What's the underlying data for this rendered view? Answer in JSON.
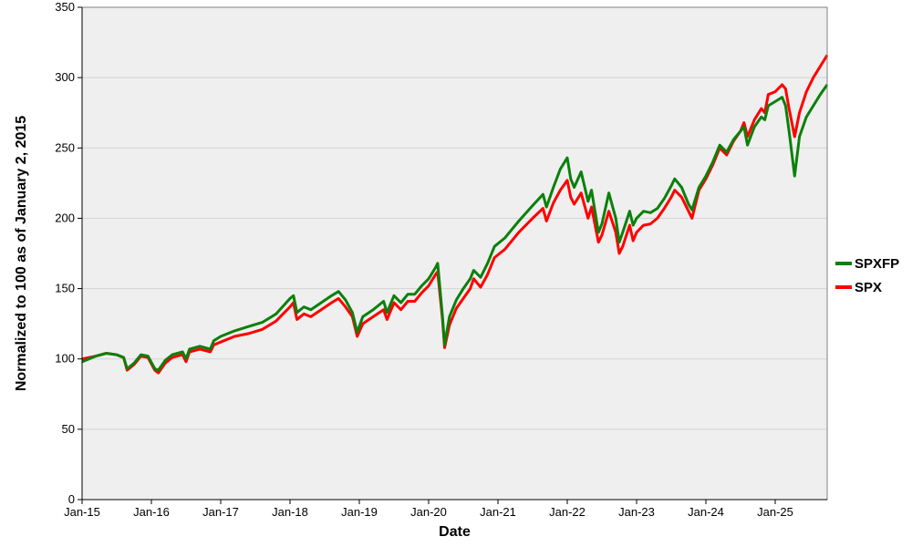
{
  "chart_data": {
    "type": "line",
    "title": "",
    "xlabel": "Date",
    "ylabel": "Normalized to 100 as of January 2, 2015",
    "xlim": [
      2015.0,
      2025.75
    ],
    "ylim": [
      0,
      350
    ],
    "y_ticks": [
      0,
      50,
      100,
      150,
      200,
      250,
      300,
      350
    ],
    "x_ticks": [
      {
        "x": 2015.0,
        "label": "Jan-15"
      },
      {
        "x": 2016.0,
        "label": "Jan-16"
      },
      {
        "x": 2017.0,
        "label": "Jan-17"
      },
      {
        "x": 2018.0,
        "label": "Jan-18"
      },
      {
        "x": 2019.0,
        "label": "Jan-19"
      },
      {
        "x": 2020.0,
        "label": "Jan-20"
      },
      {
        "x": 2021.0,
        "label": "Jan-21"
      },
      {
        "x": 2022.0,
        "label": "Jan-22"
      },
      {
        "x": 2023.0,
        "label": "Jan-23"
      },
      {
        "x": 2024.0,
        "label": "Jan-24"
      },
      {
        "x": 2025.0,
        "label": "Jan-25"
      }
    ],
    "grid": true,
    "background": "#efefef",
    "legend_position": "right",
    "series": [
      {
        "name": "SPX",
        "color": "#ff0000",
        "points": [
          [
            2015.0,
            100
          ],
          [
            2015.1,
            101
          ],
          [
            2015.2,
            102
          ],
          [
            2015.35,
            104
          ],
          [
            2015.5,
            103
          ],
          [
            2015.6,
            101
          ],
          [
            2015.65,
            92
          ],
          [
            2015.75,
            96
          ],
          [
            2015.85,
            102
          ],
          [
            2015.95,
            101
          ],
          [
            2016.05,
            92
          ],
          [
            2016.1,
            90
          ],
          [
            2016.2,
            97
          ],
          [
            2016.3,
            101
          ],
          [
            2016.45,
            103
          ],
          [
            2016.5,
            98
          ],
          [
            2016.55,
            105
          ],
          [
            2016.7,
            107
          ],
          [
            2016.85,
            105
          ],
          [
            2016.9,
            110
          ],
          [
            2017.0,
            112
          ],
          [
            2017.2,
            116
          ],
          [
            2017.4,
            118
          ],
          [
            2017.6,
            121
          ],
          [
            2017.8,
            127
          ],
          [
            2018.0,
            137
          ],
          [
            2018.05,
            140
          ],
          [
            2018.1,
            128
          ],
          [
            2018.2,
            132
          ],
          [
            2018.3,
            130
          ],
          [
            2018.45,
            135
          ],
          [
            2018.6,
            140
          ],
          [
            2018.7,
            143
          ],
          [
            2018.8,
            137
          ],
          [
            2018.9,
            130
          ],
          [
            2018.97,
            116
          ],
          [
            2019.05,
            125
          ],
          [
            2019.2,
            130
          ],
          [
            2019.35,
            135
          ],
          [
            2019.4,
            128
          ],
          [
            2019.5,
            140
          ],
          [
            2019.6,
            135
          ],
          [
            2019.7,
            141
          ],
          [
            2019.8,
            141
          ],
          [
            2019.9,
            147
          ],
          [
            2020.0,
            152
          ],
          [
            2020.1,
            160
          ],
          [
            2020.13,
            162
          ],
          [
            2020.2,
            128
          ],
          [
            2020.23,
            108
          ],
          [
            2020.3,
            124
          ],
          [
            2020.4,
            136
          ],
          [
            2020.5,
            143
          ],
          [
            2020.6,
            150
          ],
          [
            2020.65,
            157
          ],
          [
            2020.75,
            151
          ],
          [
            2020.85,
            160
          ],
          [
            2020.95,
            172
          ],
          [
            2021.0,
            174
          ],
          [
            2021.1,
            178
          ],
          [
            2021.3,
            190
          ],
          [
            2021.5,
            200
          ],
          [
            2021.65,
            207
          ],
          [
            2021.7,
            198
          ],
          [
            2021.8,
            211
          ],
          [
            2021.9,
            220
          ],
          [
            2022.0,
            227
          ],
          [
            2022.05,
            215
          ],
          [
            2022.1,
            210
          ],
          [
            2022.2,
            218
          ],
          [
            2022.3,
            200
          ],
          [
            2022.35,
            208
          ],
          [
            2022.45,
            183
          ],
          [
            2022.5,
            188
          ],
          [
            2022.6,
            205
          ],
          [
            2022.7,
            190
          ],
          [
            2022.75,
            175
          ],
          [
            2022.8,
            180
          ],
          [
            2022.9,
            195
          ],
          [
            2022.95,
            184
          ],
          [
            2023.0,
            190
          ],
          [
            2023.1,
            195
          ],
          [
            2023.2,
            196
          ],
          [
            2023.3,
            200
          ],
          [
            2023.4,
            207
          ],
          [
            2023.5,
            215
          ],
          [
            2023.55,
            220
          ],
          [
            2023.65,
            215
          ],
          [
            2023.75,
            205
          ],
          [
            2023.8,
            200
          ],
          [
            2023.9,
            220
          ],
          [
            2024.0,
            228
          ],
          [
            2024.1,
            238
          ],
          [
            2024.2,
            250
          ],
          [
            2024.3,
            245
          ],
          [
            2024.4,
            255
          ],
          [
            2024.5,
            262
          ],
          [
            2024.55,
            268
          ],
          [
            2024.6,
            258
          ],
          [
            2024.7,
            270
          ],
          [
            2024.8,
            278
          ],
          [
            2024.85,
            275
          ],
          [
            2024.9,
            288
          ],
          [
            2025.0,
            290
          ],
          [
            2025.1,
            295
          ],
          [
            2025.15,
            292
          ],
          [
            2025.2,
            278
          ],
          [
            2025.28,
            258
          ],
          [
            2025.35,
            275
          ],
          [
            2025.45,
            290
          ],
          [
            2025.55,
            300
          ],
          [
            2025.65,
            308
          ],
          [
            2025.75,
            316
          ]
        ]
      },
      {
        "name": "SPXFP",
        "color": "#0b800b",
        "points": [
          [
            2015.0,
            98
          ],
          [
            2015.1,
            100
          ],
          [
            2015.2,
            102
          ],
          [
            2015.35,
            104
          ],
          [
            2015.5,
            103
          ],
          [
            2015.6,
            101
          ],
          [
            2015.65,
            93
          ],
          [
            2015.75,
            97
          ],
          [
            2015.85,
            103
          ],
          [
            2015.95,
            102
          ],
          [
            2016.05,
            93
          ],
          [
            2016.1,
            92
          ],
          [
            2016.2,
            99
          ],
          [
            2016.3,
            103
          ],
          [
            2016.45,
            105
          ],
          [
            2016.5,
            100
          ],
          [
            2016.55,
            107
          ],
          [
            2016.7,
            109
          ],
          [
            2016.85,
            107
          ],
          [
            2016.9,
            113
          ],
          [
            2017.0,
            116
          ],
          [
            2017.2,
            120
          ],
          [
            2017.4,
            123
          ],
          [
            2017.6,
            126
          ],
          [
            2017.8,
            132
          ],
          [
            2018.0,
            143
          ],
          [
            2018.05,
            145
          ],
          [
            2018.1,
            133
          ],
          [
            2018.2,
            137
          ],
          [
            2018.3,
            135
          ],
          [
            2018.45,
            140
          ],
          [
            2018.6,
            145
          ],
          [
            2018.7,
            148
          ],
          [
            2018.8,
            142
          ],
          [
            2018.9,
            133
          ],
          [
            2018.97,
            119
          ],
          [
            2019.05,
            130
          ],
          [
            2019.2,
            135
          ],
          [
            2019.35,
            141
          ],
          [
            2019.4,
            133
          ],
          [
            2019.5,
            145
          ],
          [
            2019.6,
            140
          ],
          [
            2019.7,
            146
          ],
          [
            2019.8,
            146
          ],
          [
            2019.9,
            152
          ],
          [
            2020.0,
            157
          ],
          [
            2020.1,
            165
          ],
          [
            2020.13,
            168
          ],
          [
            2020.2,
            130
          ],
          [
            2020.23,
            110
          ],
          [
            2020.3,
            130
          ],
          [
            2020.4,
            142
          ],
          [
            2020.5,
            150
          ],
          [
            2020.6,
            157
          ],
          [
            2020.65,
            163
          ],
          [
            2020.75,
            158
          ],
          [
            2020.85,
            168
          ],
          [
            2020.95,
            180
          ],
          [
            2021.0,
            182
          ],
          [
            2021.1,
            186
          ],
          [
            2021.3,
            198
          ],
          [
            2021.5,
            209
          ],
          [
            2021.65,
            217
          ],
          [
            2021.7,
            208
          ],
          [
            2021.8,
            222
          ],
          [
            2021.9,
            235
          ],
          [
            2022.0,
            243
          ],
          [
            2022.05,
            228
          ],
          [
            2022.1,
            222
          ],
          [
            2022.2,
            233
          ],
          [
            2022.3,
            212
          ],
          [
            2022.35,
            220
          ],
          [
            2022.45,
            190
          ],
          [
            2022.5,
            196
          ],
          [
            2022.6,
            218
          ],
          [
            2022.7,
            200
          ],
          [
            2022.75,
            183
          ],
          [
            2022.8,
            190
          ],
          [
            2022.9,
            205
          ],
          [
            2022.95,
            195
          ],
          [
            2023.0,
            200
          ],
          [
            2023.1,
            205
          ],
          [
            2023.2,
            204
          ],
          [
            2023.3,
            207
          ],
          [
            2023.4,
            214
          ],
          [
            2023.5,
            223
          ],
          [
            2023.55,
            228
          ],
          [
            2023.65,
            222
          ],
          [
            2023.75,
            210
          ],
          [
            2023.8,
            206
          ],
          [
            2023.9,
            222
          ],
          [
            2024.0,
            230
          ],
          [
            2024.1,
            240
          ],
          [
            2024.2,
            252
          ],
          [
            2024.3,
            247
          ],
          [
            2024.4,
            256
          ],
          [
            2024.5,
            262
          ],
          [
            2024.55,
            265
          ],
          [
            2024.6,
            252
          ],
          [
            2024.7,
            265
          ],
          [
            2024.8,
            272
          ],
          [
            2024.85,
            270
          ],
          [
            2024.9,
            280
          ],
          [
            2025.0,
            283
          ],
          [
            2025.1,
            286
          ],
          [
            2025.15,
            280
          ],
          [
            2025.2,
            262
          ],
          [
            2025.28,
            230
          ],
          [
            2025.35,
            258
          ],
          [
            2025.45,
            272
          ],
          [
            2025.55,
            280
          ],
          [
            2025.65,
            288
          ],
          [
            2025.75,
            295
          ]
        ]
      }
    ],
    "legend": [
      {
        "name": "SPXFP",
        "color": "#0b800b"
      },
      {
        "name": "SPX",
        "color": "#ff0000"
      }
    ]
  }
}
